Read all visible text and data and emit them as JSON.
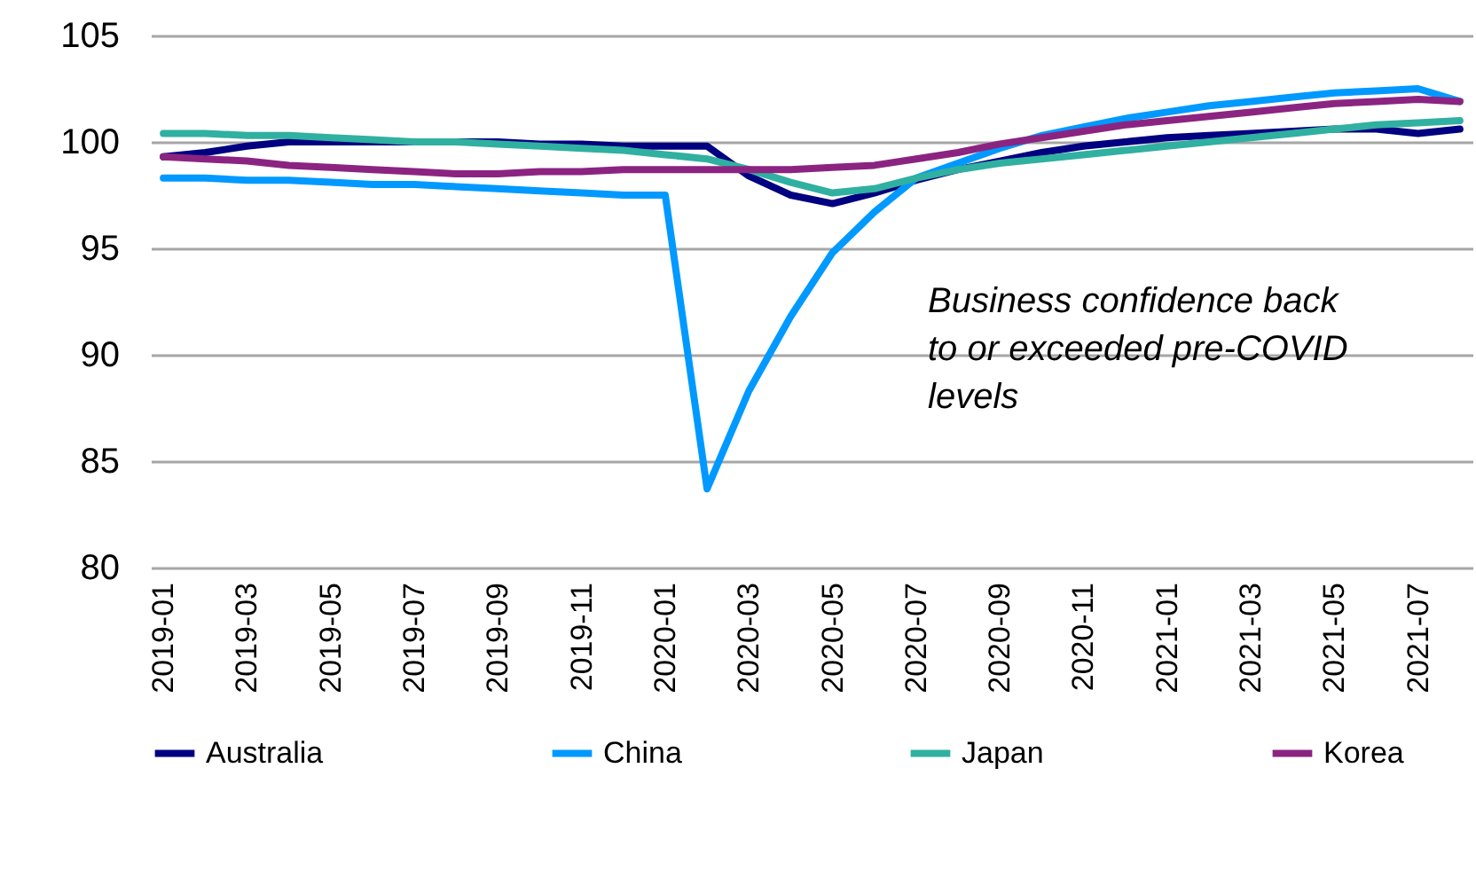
{
  "chart_data": {
    "type": "line",
    "categories": [
      "2019-01",
      null,
      "2019-03",
      null,
      "2019-05",
      null,
      "2019-07",
      null,
      "2019-09",
      null,
      "2019-11",
      null,
      "2020-01",
      null,
      "2020-03",
      null,
      "2020-05",
      null,
      "2020-07",
      null,
      "2020-09",
      null,
      "2020-11",
      null,
      "2021-01",
      null,
      "2021-03",
      null,
      "2021-05",
      null,
      "2021-07",
      null
    ],
    "series": [
      {
        "name": "Australia",
        "color": "#000080",
        "values": [
          99.3,
          99.5,
          99.8,
          100.0,
          100.0,
          100.0,
          100.0,
          100.0,
          100.0,
          99.9,
          99.9,
          99.8,
          99.8,
          99.8,
          98.4,
          97.5,
          97.1,
          97.6,
          98.2,
          98.7,
          99.1,
          99.5,
          99.8,
          100.0,
          100.2,
          100.3,
          100.4,
          100.5,
          100.6,
          100.6,
          100.4,
          100.6
        ]
      },
      {
        "name": "China",
        "color": "#0099ff",
        "values": [
          98.3,
          98.3,
          98.2,
          98.2,
          98.1,
          98.0,
          98.0,
          97.9,
          97.8,
          97.7,
          97.6,
          97.5,
          97.5,
          83.7,
          88.3,
          91.8,
          94.8,
          96.7,
          98.3,
          99.0,
          99.7,
          100.3,
          100.7,
          101.1,
          101.4,
          101.7,
          101.9,
          102.1,
          102.3,
          102.4,
          102.5,
          101.9
        ]
      },
      {
        "name": "Japan",
        "color": "#30b0a0",
        "values": [
          100.4,
          100.4,
          100.3,
          100.3,
          100.2,
          100.1,
          100.0,
          100.0,
          99.9,
          99.8,
          99.7,
          99.6,
          99.4,
          99.2,
          98.7,
          98.1,
          97.6,
          97.8,
          98.3,
          98.7,
          99.0,
          99.2,
          99.4,
          99.6,
          99.8,
          100.0,
          100.2,
          100.4,
          100.6,
          100.8,
          100.9,
          101.0
        ]
      },
      {
        "name": "Korea",
        "color": "#8b2481",
        "values": [
          99.3,
          99.2,
          99.1,
          98.9,
          98.8,
          98.7,
          98.6,
          98.5,
          98.5,
          98.6,
          98.6,
          98.7,
          98.7,
          98.7,
          98.7,
          98.7,
          98.8,
          98.9,
          99.2,
          99.5,
          99.9,
          100.2,
          100.5,
          100.8,
          101.0,
          101.2,
          101.4,
          101.6,
          101.8,
          101.9,
          102.0,
          101.9
        ]
      }
    ],
    "ylim": [
      80,
      105
    ],
    "yticks": [
      80,
      85,
      90,
      95,
      100,
      105
    ],
    "grid": "y",
    "legend": "bottom",
    "annotations": [
      "Business confidence back to or exceeded pre-COVID levels"
    ]
  }
}
